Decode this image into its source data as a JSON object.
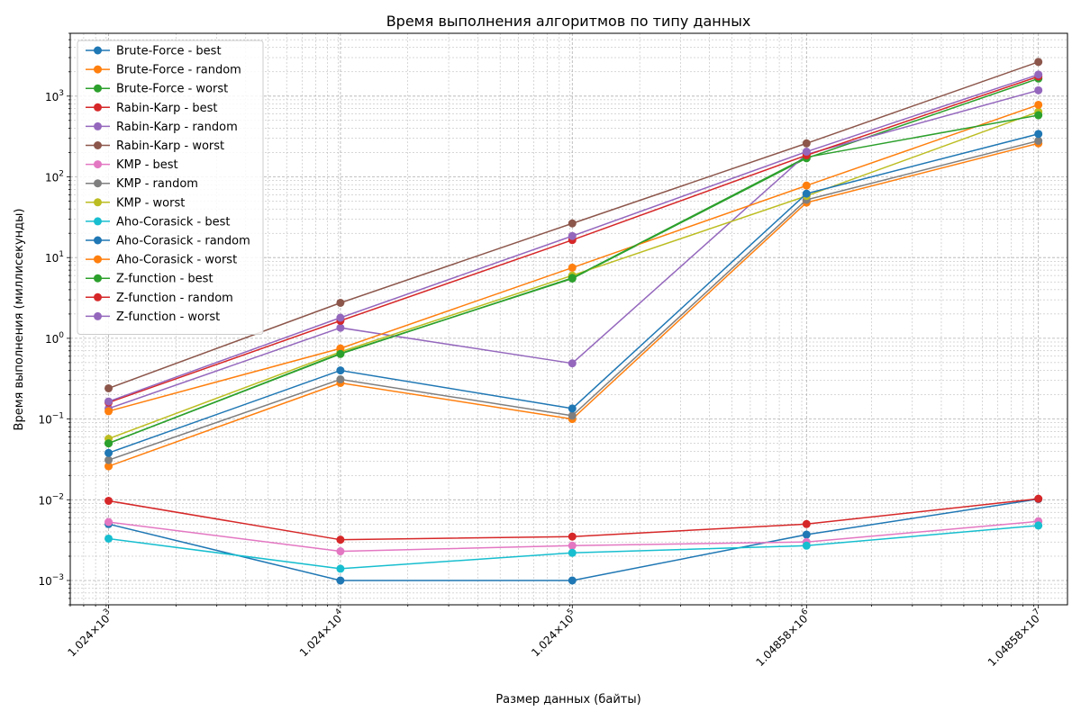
{
  "chart_data": {
    "type": "line",
    "title": "Время выполнения алгоритмов по типу данных",
    "xlabel": "Размер данных (байты)",
    "ylabel": "Время выполнения (миллисекунды)",
    "xscale": "log",
    "yscale": "log",
    "xlim": [
      700,
      14000000
    ],
    "ylim": [
      0.0005,
      6000
    ],
    "grid": true,
    "legend_position": "top-left",
    "x": [
      1024,
      10240,
      102400,
      1048576,
      10485760
    ],
    "xtick_labels": [
      {
        "mantissa": "1.024",
        "exp": "3"
      },
      {
        "mantissa": "1.024",
        "exp": "4"
      },
      {
        "mantissa": "1.024",
        "exp": "5"
      },
      {
        "mantissa": "1.04858",
        "exp": "6"
      },
      {
        "mantissa": "1.04858",
        "exp": "7"
      }
    ],
    "yticks": [
      {
        "value": 0.001,
        "exp": "−3"
      },
      {
        "value": 0.01,
        "exp": "−2"
      },
      {
        "value": 0.1,
        "exp": "−1"
      },
      {
        "value": 1,
        "exp": "0"
      },
      {
        "value": 10,
        "exp": "1"
      },
      {
        "value": 100,
        "exp": "2"
      },
      {
        "value": 1000,
        "exp": "3"
      }
    ],
    "series": [
      {
        "name": "Brute-Force - best",
        "color": "#1f77b4",
        "values": [
          0.005,
          0.001,
          0.001,
          0.0037,
          0.0102
        ]
      },
      {
        "name": "Brute-Force - random",
        "color": "#ff7f0e",
        "values": [
          0.026,
          0.28,
          0.1,
          48,
          260
        ]
      },
      {
        "name": "Brute-Force - worst",
        "color": "#2ca02c",
        "values": [
          0.05,
          0.65,
          5.5,
          170,
          1650
        ]
      },
      {
        "name": "Rabin-Karp - best",
        "color": "#d62728",
        "values": [
          0.0097,
          0.0032,
          0.0035,
          0.005,
          0.0103
        ]
      },
      {
        "name": "Rabin-Karp - random",
        "color": "#9467bd",
        "values": [
          0.135,
          1.35,
          0.49,
          190,
          1180
        ]
      },
      {
        "name": "Rabin-Karp - worst",
        "color": "#8c564b",
        "values": [
          0.24,
          2.75,
          26.5,
          260,
          2650
        ]
      },
      {
        "name": "KMP - best",
        "color": "#e377c2",
        "values": [
          0.0053,
          0.0023,
          0.0027,
          0.003,
          0.0054
        ]
      },
      {
        "name": "KMP - random",
        "color": "#7f7f7f",
        "values": [
          0.031,
          0.31,
          0.11,
          52,
          280
        ]
      },
      {
        "name": "KMP - worst",
        "color": "#bcbd22",
        "values": [
          0.057,
          0.68,
          6.0,
          58,
          640
        ]
      },
      {
        "name": "Aho-Corasick - best",
        "color": "#17becf",
        "values": [
          0.0033,
          0.0014,
          0.0022,
          0.0027,
          0.0048
        ]
      },
      {
        "name": "Aho-Corasick - random",
        "color": "#1f77b4",
        "values": [
          0.038,
          0.4,
          0.135,
          62,
          340
        ]
      },
      {
        "name": "Aho-Corasick - worst",
        "color": "#ff7f0e",
        "values": [
          0.125,
          0.75,
          7.5,
          78,
          780
        ]
      },
      {
        "name": "Z-function - best",
        "color": "#2ca02c",
        "values": [
          0.05,
          0.64,
          5.6,
          175,
          580
        ]
      },
      {
        "name": "Z-function - random",
        "color": "#d62728",
        "values": [
          0.16,
          1.65,
          16.5,
          185,
          1750
        ]
      },
      {
        "name": "Z-function - worst",
        "color": "#9467bd",
        "values": [
          0.165,
          1.8,
          18.5,
          205,
          1850
        ]
      }
    ]
  }
}
